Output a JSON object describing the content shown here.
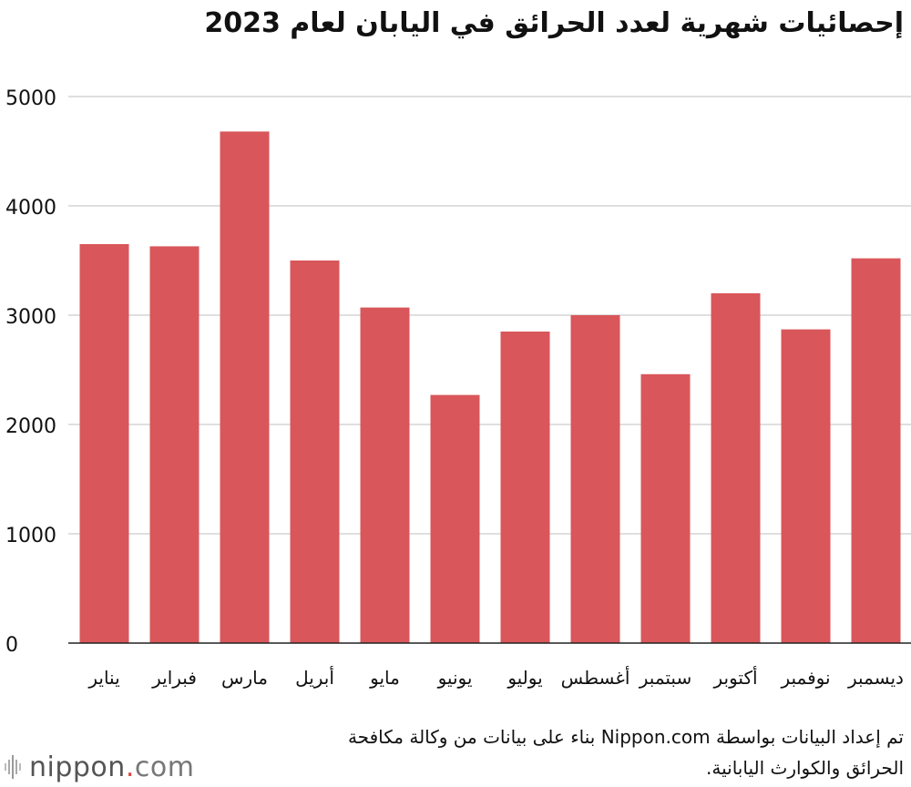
{
  "chart_data": {
    "type": "bar",
    "title": "إحصائيات شهرية لعدد الحرائق في اليابان لعام 2023",
    "categories": [
      "يناير",
      "فبراير",
      "مارس",
      "أبريل",
      "مايو",
      "يونيو",
      "يوليو",
      "أغسطس",
      "سبتمبر",
      "أكتوبر",
      "نوفمبر",
      "ديسمبر"
    ],
    "values": [
      3650,
      3630,
      4680,
      3500,
      3070,
      2270,
      2850,
      3000,
      2460,
      3200,
      2870,
      3520
    ],
    "ylim": [
      0,
      5000
    ],
    "yticks": [
      0,
      1000,
      2000,
      3000,
      4000,
      5000
    ],
    "bar_color": "#d9565a",
    "grid": true,
    "legend": "none"
  },
  "source_note": "تم إعداد البيانات بواسطة Nippon.com بناء على بيانات من وكالة مكافحة الحرائق والكوارث اليابانية.",
  "logo": {
    "name": "nippon",
    "dot": ".",
    "suffix": "com",
    "accent": "#e0463c"
  }
}
